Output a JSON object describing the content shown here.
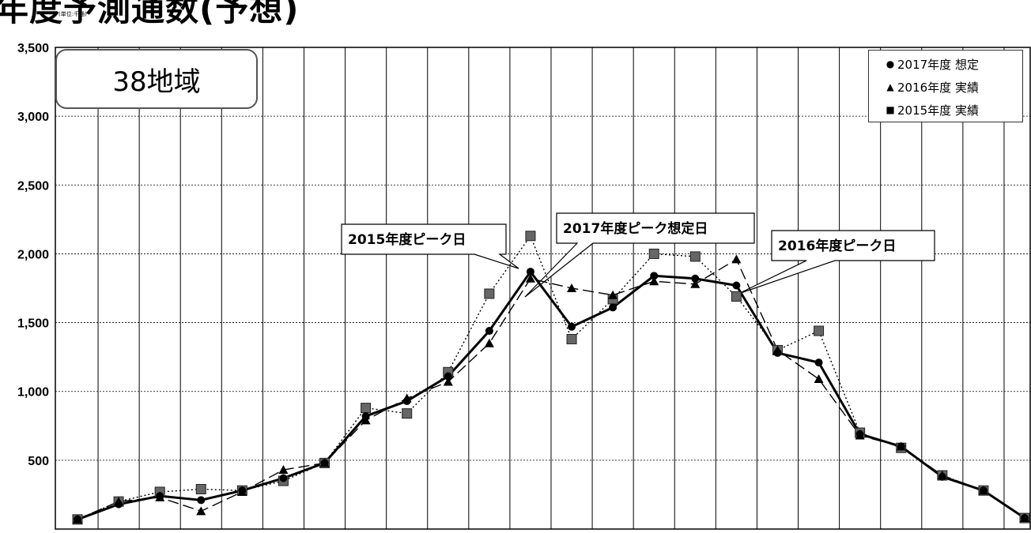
{
  "header": {
    "title": "年度予測通数(予想)",
    "unit": "(単位:千通)"
  },
  "region_label": "38地域",
  "callouts": {
    "peak_2015": "2015年度ピーク日",
    "peak_2017": "2017年度ピーク想定日",
    "peak_2016": "2016年度ピーク日"
  },
  "chart_data": {
    "type": "line",
    "title": "年度予測通数(予想)",
    "ylim": [
      0,
      3500
    ],
    "y_ticks": [
      "500",
      "1,000",
      "1,500",
      "2,000",
      "2,500",
      "3,000",
      "3,500"
    ],
    "grid": true,
    "legend_position": "top-right",
    "x": [
      1,
      2,
      3,
      4,
      5,
      6,
      7,
      8,
      9,
      10,
      11,
      12,
      13,
      14,
      15,
      16,
      17,
      18,
      19,
      20,
      21,
      22,
      23,
      24
    ],
    "series": [
      {
        "name": "2017年度 想定",
        "marker": "circle",
        "line": "solid",
        "color": "#000000",
        "values": [
          70,
          180,
          240,
          210,
          280,
          370,
          480,
          820,
          930,
          1110,
          1440,
          1870,
          1470,
          1610,
          1840,
          1820,
          1770,
          1280,
          1210,
          690,
          600,
          380,
          280,
          80
        ]
      },
      {
        "name": "2016年度 実績",
        "marker": "triangle",
        "line": "dashed",
        "color": "#000000",
        "values": [
          70,
          200,
          230,
          130,
          270,
          430,
          480,
          790,
          950,
          1070,
          1350,
          1820,
          1750,
          1700,
          1800,
          1780,
          1960,
          1300,
          1090,
          680,
          600,
          390,
          280,
          80
        ]
      },
      {
        "name": "2015年度 実績",
        "marker": "square",
        "line": "dotted",
        "color": "#000000",
        "values": [
          70,
          200,
          270,
          290,
          280,
          350,
          480,
          880,
          840,
          1140,
          1710,
          2130,
          1380,
          1670,
          2000,
          1980,
          1690,
          1300,
          1440,
          700,
          590,
          390,
          280,
          80
        ]
      }
    ]
  }
}
